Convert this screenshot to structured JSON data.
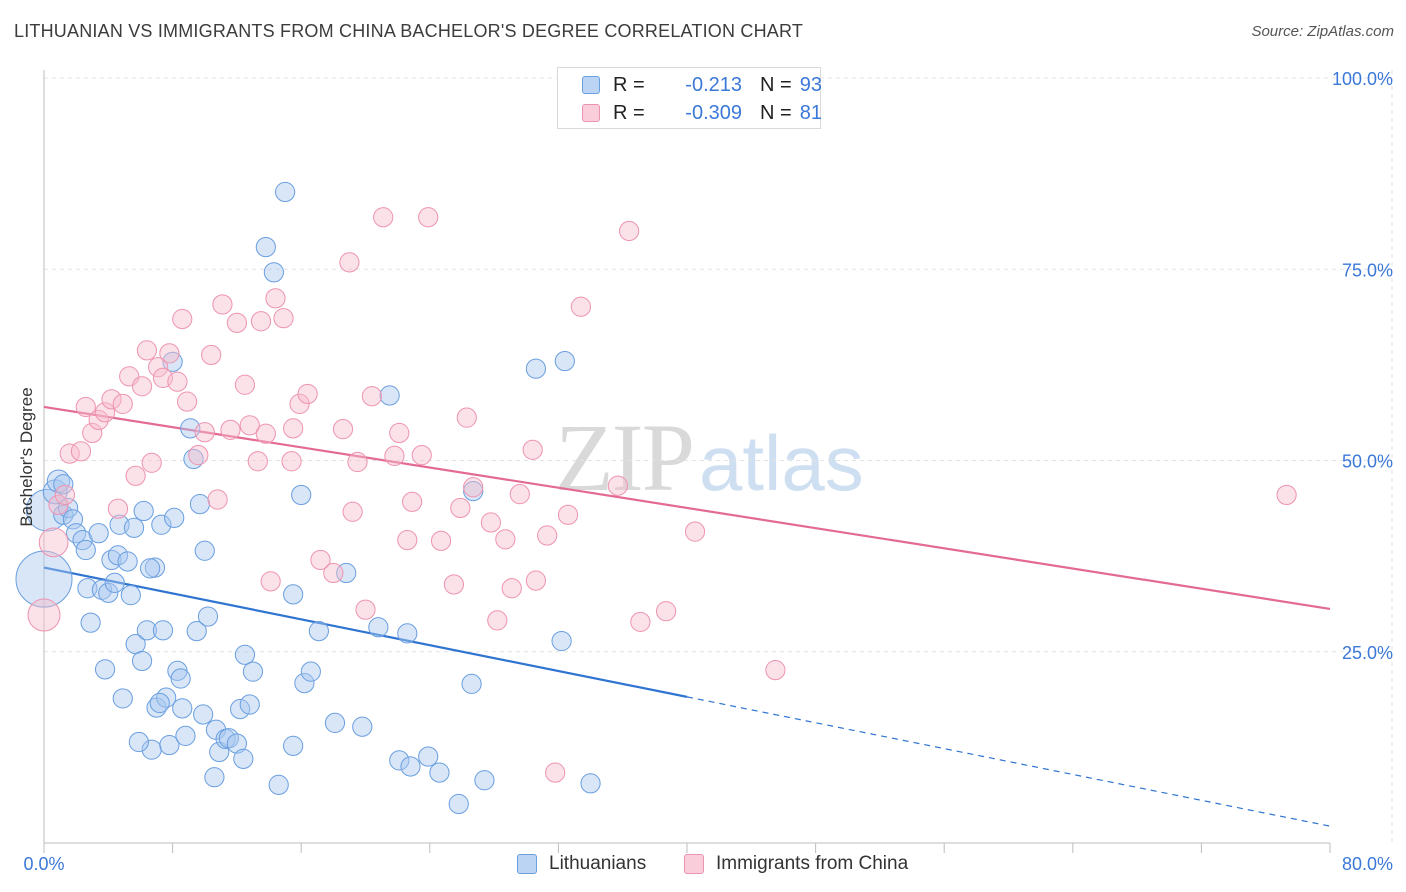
{
  "header": {
    "title": "LITHUANIAN VS IMMIGRANTS FROM CHINA BACHELOR'S DEGREE CORRELATION CHART",
    "source": "Source: ZipAtlas.com"
  },
  "legend_top": {
    "rows": [
      {
        "r_label": "R =",
        "r_value": "-0.213",
        "n_label": "N =",
        "n_value": "93"
      },
      {
        "r_label": "R =",
        "r_value": "-0.309",
        "n_label": "N =",
        "n_value": "81"
      }
    ]
  },
  "legend_bottom": {
    "items": [
      {
        "label": "Lithuanians"
      },
      {
        "label": "Immigrants from China"
      }
    ]
  },
  "watermark": {
    "zip": "ZIP",
    "atlas": "atlas"
  },
  "colors": {
    "blue_fill": "#a9c8ef",
    "blue_stroke": "#6a9fe0",
    "blue_line": "#2f74d0",
    "pink_fill": "#f6bccd",
    "pink_stroke": "#ee94b0",
    "pink_line": "#e36a92",
    "grid": "#e3e3e3",
    "axis_label": "#3b78d8"
  },
  "chart_data": {
    "type": "scatter",
    "title": "LITHUANIAN VS IMMIGRANTS FROM CHINA BACHELOR'S DEGREE CORRELATION CHART",
    "xlabel": "",
    "ylabel": "Bachelor's Degree",
    "xlim": [
      0,
      80
    ],
    "ylim": [
      0,
      100
    ],
    "x_tick_labels": [
      "0.0%",
      "80.0%"
    ],
    "y_tick_labels": [
      "100.0%",
      "75.0%",
      "50.0%",
      "25.0%"
    ],
    "y_tick_values": [
      100,
      75,
      50,
      25
    ],
    "grid": true,
    "legend_position": "top-center",
    "series": [
      {
        "name": "Lithuanians",
        "R": -0.213,
        "N": 93,
        "trend": {
          "x0": 0,
          "y0": 36.0,
          "x1": 40,
          "y1": 19.1,
          "dashed_to_x": 80,
          "dashed_to_y": 2.2
        },
        "points": [
          [
            0.0,
            34.5,
            3.5
          ],
          [
            0.2,
            43.5,
            2.6
          ],
          [
            0.7,
            45.9,
            1.5
          ],
          [
            0.9,
            47.3,
            1.4
          ],
          [
            1.2,
            46.9,
            1.2
          ],
          [
            1.2,
            42.9,
            1.2
          ],
          [
            1.5,
            43.8,
            1.2
          ],
          [
            1.8,
            42.3,
            1.2
          ],
          [
            2.0,
            40.5,
            1.2
          ],
          [
            2.4,
            39.6,
            1.2
          ],
          [
            2.6,
            38.3,
            1.2
          ],
          [
            2.7,
            33.3,
            1.2
          ],
          [
            2.9,
            28.8,
            1.2
          ],
          [
            3.4,
            40.5,
            1.2
          ],
          [
            3.6,
            33.1,
            1.2
          ],
          [
            3.8,
            22.7,
            1.2
          ],
          [
            4.0,
            32.7,
            1.2
          ],
          [
            4.2,
            37.0,
            1.2
          ],
          [
            4.4,
            34.0,
            1.2
          ],
          [
            4.6,
            37.6,
            1.2
          ],
          [
            4.7,
            41.6,
            1.2
          ],
          [
            4.9,
            18.9,
            1.2
          ],
          [
            5.2,
            36.8,
            1.2
          ],
          [
            5.4,
            32.4,
            1.2
          ],
          [
            5.6,
            41.2,
            1.2
          ],
          [
            5.7,
            26.0,
            1.2
          ],
          [
            6.1,
            23.8,
            1.2
          ],
          [
            6.2,
            43.4,
            1.2
          ],
          [
            6.4,
            27.8,
            1.2
          ],
          [
            6.7,
            12.2,
            1.2
          ],
          [
            6.9,
            36.0,
            1.2
          ],
          [
            7.0,
            17.7,
            1.2
          ],
          [
            7.3,
            41.6,
            1.2
          ],
          [
            7.4,
            27.8,
            1.2
          ],
          [
            7.6,
            19.0,
            1.2
          ],
          [
            7.8,
            12.8,
            1.2
          ],
          [
            8.1,
            42.5,
            1.2
          ],
          [
            8.3,
            22.5,
            1.2
          ],
          [
            8.5,
            21.5,
            1.2
          ],
          [
            8.6,
            17.6,
            1.2
          ],
          [
            8.8,
            14.0,
            1.2
          ],
          [
            9.1,
            54.2,
            1.2
          ],
          [
            9.3,
            50.2,
            1.2
          ],
          [
            9.5,
            27.7,
            1.2
          ],
          [
            9.7,
            44.3,
            1.2
          ],
          [
            9.9,
            16.8,
            1.2
          ],
          [
            10.0,
            38.2,
            1.2
          ],
          [
            10.2,
            29.6,
            1.2
          ],
          [
            10.6,
            8.6,
            1.2
          ],
          [
            10.7,
            14.8,
            1.2
          ],
          [
            10.9,
            11.9,
            1.2
          ],
          [
            11.3,
            13.6,
            1.2
          ],
          [
            11.5,
            13.7,
            1.2
          ],
          [
            12.0,
            13.0,
            1.2
          ],
          [
            12.2,
            17.5,
            1.2
          ],
          [
            12.4,
            11.0,
            1.2
          ],
          [
            12.5,
            24.6,
            1.2
          ],
          [
            12.8,
            18.1,
            1.2
          ],
          [
            13.0,
            22.4,
            1.2
          ],
          [
            14.3,
            74.6,
            1.2
          ],
          [
            14.6,
            7.6,
            1.2
          ],
          [
            15.0,
            85.1,
            1.2
          ],
          [
            15.5,
            32.5,
            1.2
          ],
          [
            15.5,
            12.7,
            1.2
          ],
          [
            16.0,
            45.5,
            1.2
          ],
          [
            16.2,
            20.9,
            1.2
          ],
          [
            16.6,
            22.4,
            1.2
          ],
          [
            17.1,
            27.7,
            1.2
          ],
          [
            18.1,
            15.7,
            1.2
          ],
          [
            18.8,
            35.3,
            1.2
          ],
          [
            19.8,
            15.2,
            1.2
          ],
          [
            20.8,
            28.2,
            1.2
          ],
          [
            21.5,
            58.5,
            1.2
          ],
          [
            22.1,
            10.8,
            1.2
          ],
          [
            22.6,
            27.4,
            1.2
          ],
          [
            22.8,
            10.0,
            1.2
          ],
          [
            23.9,
            11.3,
            1.2
          ],
          [
            24.6,
            9.2,
            1.2
          ],
          [
            25.8,
            5.1,
            1.2
          ],
          [
            26.7,
            46.0,
            1.2
          ],
          [
            26.6,
            20.8,
            1.2
          ],
          [
            27.4,
            8.2,
            1.2
          ],
          [
            30.6,
            62.0,
            1.2
          ],
          [
            32.2,
            26.4,
            1.2
          ],
          [
            32.4,
            63.0,
            1.2
          ],
          [
            34.0,
            7.8,
            1.2
          ],
          [
            13.8,
            77.9,
            1.2
          ],
          [
            8.0,
            62.9,
            1.2
          ],
          [
            7.2,
            18.3,
            1.2
          ],
          [
            5.9,
            13.2,
            1.2
          ],
          [
            6.6,
            35.9,
            1.2
          ]
        ]
      },
      {
        "name": "Immigrants from China",
        "R": -0.309,
        "N": 81,
        "trend": {
          "x0": 0,
          "y0": 57.0,
          "x1": 80,
          "y1": 30.6
        },
        "points": [
          [
            0.0,
            29.8,
            2.0
          ],
          [
            0.6,
            39.3,
            1.8
          ],
          [
            0.9,
            44.2,
            1.2
          ],
          [
            1.3,
            45.5,
            1.2
          ],
          [
            1.6,
            50.9,
            1.2
          ],
          [
            2.3,
            51.2,
            1.2
          ],
          [
            2.6,
            57.0,
            1.2
          ],
          [
            3.0,
            53.6,
            1.2
          ],
          [
            3.4,
            55.3,
            1.2
          ],
          [
            3.8,
            56.3,
            1.2
          ],
          [
            4.2,
            58.0,
            1.2
          ],
          [
            4.6,
            43.7,
            1.2
          ],
          [
            4.9,
            57.4,
            1.2
          ],
          [
            5.3,
            61.0,
            1.2
          ],
          [
            5.7,
            48.0,
            1.2
          ],
          [
            6.1,
            59.7,
            1.2
          ],
          [
            6.4,
            64.4,
            1.2
          ],
          [
            6.7,
            49.7,
            1.2
          ],
          [
            7.1,
            62.2,
            1.2
          ],
          [
            7.4,
            60.8,
            1.2
          ],
          [
            7.8,
            64.0,
            1.2
          ],
          [
            8.3,
            60.3,
            1.2
          ],
          [
            8.6,
            68.5,
            1.2
          ],
          [
            8.9,
            57.7,
            1.2
          ],
          [
            9.6,
            50.7,
            1.2
          ],
          [
            10.0,
            53.7,
            1.2
          ],
          [
            10.4,
            63.8,
            1.2
          ],
          [
            10.8,
            44.9,
            1.2
          ],
          [
            11.1,
            70.4,
            1.2
          ],
          [
            11.6,
            54.0,
            1.2
          ],
          [
            12.0,
            68.0,
            1.2
          ],
          [
            12.5,
            59.9,
            1.2
          ],
          [
            12.8,
            54.6,
            1.2
          ],
          [
            13.3,
            49.9,
            1.2
          ],
          [
            13.8,
            53.5,
            1.2
          ],
          [
            14.1,
            34.2,
            1.2
          ],
          [
            14.4,
            71.2,
            1.2
          ],
          [
            14.9,
            68.6,
            1.2
          ],
          [
            15.4,
            49.9,
            1.2
          ],
          [
            15.5,
            54.2,
            1.2
          ],
          [
            15.9,
            57.4,
            1.2
          ],
          [
            16.4,
            58.7,
            1.2
          ],
          [
            17.2,
            37.0,
            1.2
          ],
          [
            18.0,
            35.3,
            1.2
          ],
          [
            18.6,
            54.1,
            1.2
          ],
          [
            19.0,
            75.9,
            1.2
          ],
          [
            19.2,
            43.3,
            1.2
          ],
          [
            19.5,
            49.8,
            1.2
          ],
          [
            20.0,
            30.5,
            1.2
          ],
          [
            20.4,
            58.4,
            1.2
          ],
          [
            21.1,
            81.8,
            1.2
          ],
          [
            21.8,
            50.6,
            1.2
          ],
          [
            22.1,
            53.6,
            1.2
          ],
          [
            22.6,
            39.6,
            1.2
          ],
          [
            22.9,
            44.6,
            1.2
          ],
          [
            23.5,
            50.7,
            1.2
          ],
          [
            23.9,
            81.8,
            1.2
          ],
          [
            24.7,
            39.5,
            1.2
          ],
          [
            25.5,
            33.8,
            1.2
          ],
          [
            25.9,
            43.8,
            1.2
          ],
          [
            26.3,
            55.6,
            1.2
          ],
          [
            26.7,
            46.5,
            1.2
          ],
          [
            27.8,
            41.9,
            1.2
          ],
          [
            28.2,
            29.1,
            1.2
          ],
          [
            28.7,
            39.7,
            1.2
          ],
          [
            29.1,
            33.3,
            1.2
          ],
          [
            29.6,
            45.6,
            1.2
          ],
          [
            30.4,
            51.4,
            1.2
          ],
          [
            30.6,
            34.3,
            1.2
          ],
          [
            31.3,
            40.2,
            1.2
          ],
          [
            31.8,
            9.2,
            1.2
          ],
          [
            32.6,
            42.9,
            1.2
          ],
          [
            33.4,
            70.1,
            1.2
          ],
          [
            35.7,
            46.7,
            1.2
          ],
          [
            36.4,
            80.0,
            1.2
          ],
          [
            37.1,
            28.9,
            1.2
          ],
          [
            38.7,
            30.3,
            1.2
          ],
          [
            40.5,
            40.7,
            1.2
          ],
          [
            45.5,
            22.6,
            1.2
          ],
          [
            77.3,
            45.5,
            1.2
          ],
          [
            13.5,
            68.2,
            1.2
          ]
        ]
      }
    ]
  }
}
